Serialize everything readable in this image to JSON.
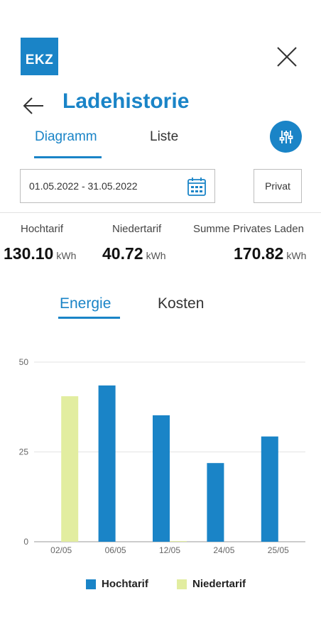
{
  "header": {
    "logo_text": "EKZ",
    "title": "Ladehistorie",
    "close_icon": "close-icon",
    "back_icon": "arrow-left-icon"
  },
  "view_tabs": {
    "diagramm": "Diagramm",
    "liste": "Liste",
    "active": "Diagramm",
    "filter_icon": "sliders-icon"
  },
  "filters": {
    "date_range": "01.05.2022 - 31.05.2022",
    "calendar_icon": "calendar-icon",
    "privat_label": "Privat"
  },
  "summary": {
    "hochtarif_label": "Hochtarif",
    "hochtarif_value": "130.10",
    "niedertarif_label": "Niedertarif",
    "niedertarif_value": "40.72",
    "total_label": "Summe Privates Laden",
    "total_value": "170.82",
    "unit": "kWh"
  },
  "chart_tabs": {
    "energie": "Energie",
    "kosten": "Kosten",
    "active": "Energie"
  },
  "colors": {
    "accent": "#1a84c7",
    "hochtarif": "#1a84c7",
    "niedertarif": "#e2eda0"
  },
  "chart_data": {
    "type": "bar",
    "categories": [
      "02/05",
      "06/05",
      "12/05",
      "24/05",
      "25/05"
    ],
    "series": [
      {
        "name": "Hochtarif",
        "values": [
          0,
          43.5,
          35.2,
          21.9,
          29.3
        ]
      },
      {
        "name": "Niedertarif",
        "values": [
          40.5,
          0,
          0.2,
          0,
          0
        ]
      }
    ],
    "yticks": [
      0,
      25,
      50
    ],
    "ylim": [
      0,
      50
    ],
    "grid": true,
    "legend": "bottom",
    "stacked": false
  }
}
